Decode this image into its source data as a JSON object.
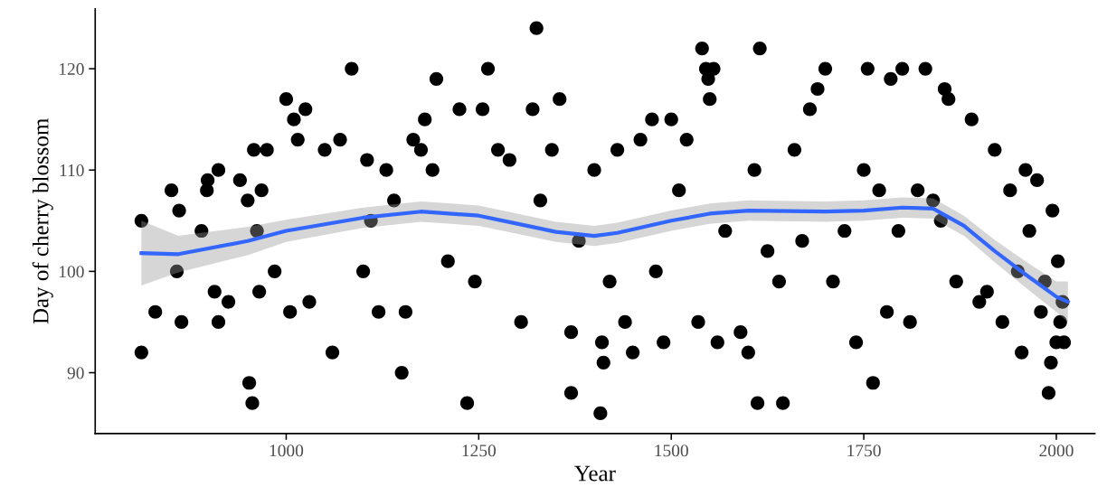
{
  "chart_data": {
    "type": "scatter",
    "xlabel": "Year",
    "ylabel": "Day of cherry blossom",
    "xlim": [
      752,
      2050
    ],
    "ylim": [
      84,
      125.9
    ],
    "xticks": [
      1000,
      1250,
      1500,
      1750,
      2000
    ],
    "yticks": [
      90,
      100,
      110,
      120
    ],
    "grid": false,
    "marker": "circle",
    "series": [
      {
        "color": "#000000",
        "x": [
          812,
          812,
          830,
          851,
          858,
          861,
          864,
          890,
          897,
          898,
          907,
          912,
          912,
          925,
          940,
          950,
          952,
          956,
          958,
          962,
          965,
          968,
          975,
          985,
          1000,
          1005,
          1010,
          1015,
          1025,
          1030,
          1050,
          1060,
          1070,
          1085,
          1100,
          1105,
          1110,
          1120,
          1130,
          1140,
          1150,
          1155,
          1165,
          1175,
          1180,
          1190,
          1195,
          1210,
          1225,
          1235,
          1245,
          1255,
          1262,
          1275,
          1290,
          1305,
          1320,
          1325,
          1330,
          1345,
          1355,
          1370,
          1370,
          1380,
          1400,
          1408,
          1410,
          1412,
          1420,
          1430,
          1440,
          1450,
          1460,
          1475,
          1480,
          1490,
          1500,
          1510,
          1520,
          1535,
          1540,
          1545,
          1548,
          1550,
          1555,
          1560,
          1570,
          1590,
          1600,
          1608,
          1612,
          1615,
          1625,
          1640,
          1645,
          1660,
          1670,
          1680,
          1690,
          1700,
          1710,
          1725,
          1740,
          1750,
          1755,
          1762,
          1770,
          1780,
          1785,
          1795,
          1800,
          1810,
          1820,
          1830,
          1840,
          1850,
          1855,
          1860,
          1870,
          1890,
          1900,
          1910,
          1920,
          1930,
          1940,
          1950,
          1955,
          1960,
          1965,
          1975,
          1980,
          1985,
          1990,
          1993,
          1995,
          2000,
          2002,
          2005,
          2008,
          2010
        ],
        "values": [
          92,
          105,
          96,
          108,
          100,
          106,
          95,
          104,
          108,
          109,
          98,
          110,
          95,
          97,
          109,
          107,
          89,
          87,
          112,
          104,
          98,
          108,
          112,
          100,
          117,
          96,
          115,
          113,
          116,
          97,
          112,
          92,
          113,
          120,
          100,
          111,
          105,
          96,
          110,
          107,
          90,
          96,
          113,
          112,
          115,
          110,
          119,
          101,
          116,
          87,
          99,
          116,
          120,
          112,
          111,
          95,
          116,
          124,
          107,
          112,
          117,
          88,
          94,
          103,
          110,
          86,
          93,
          91,
          99,
          112,
          95,
          92,
          113,
          115,
          100,
          93,
          115,
          108,
          113,
          95,
          122,
          120,
          119,
          117,
          120,
          93,
          104,
          94,
          92,
          110,
          87,
          122,
          102,
          99,
          87,
          112,
          103,
          116,
          118,
          120,
          99,
          104,
          93,
          110,
          120,
          89,
          108,
          96,
          119,
          104,
          120,
          95,
          108,
          120,
          107,
          105,
          118,
          117,
          99,
          115,
          97,
          98,
          112,
          95,
          108,
          100,
          92,
          110,
          104,
          109,
          96,
          99,
          88,
          91,
          106,
          93,
          101,
          95,
          97,
          93
        ]
      },
      {
        "type": "line",
        "color": "#3366ff",
        "marker": "none",
        "line_style": "solid",
        "x": [
          812,
          860,
          950,
          1000,
          1100,
          1175,
          1250,
          1300,
          1350,
          1400,
          1430,
          1500,
          1550,
          1600,
          1700,
          1750,
          1800,
          1840,
          1880,
          1920,
          1960,
          2000,
          2015
        ],
        "values": [
          101.8,
          101.7,
          103,
          104,
          105.3,
          105.9,
          105.5,
          104.7,
          103.9,
          103.5,
          103.8,
          105,
          105.7,
          106,
          105.9,
          106,
          106.3,
          106.2,
          104.5,
          102,
          99.7,
          97.5,
          97
        ],
        "lower": [
          98.6,
          99.9,
          101.6,
          102.9,
          104.3,
          104.9,
          104.5,
          103.7,
          102.9,
          102.5,
          102.8,
          104,
          104.7,
          105,
          104.9,
          105,
          105.3,
          105.2,
          103.5,
          100.9,
          98.4,
          96,
          95
        ],
        "upper": [
          105,
          103.5,
          104.4,
          105.1,
          106.3,
          106.9,
          106.5,
          105.7,
          104.9,
          104.5,
          104.8,
          106,
          106.7,
          107,
          106.9,
          107,
          107.3,
          107.2,
          105.5,
          103.1,
          101,
          99,
          99
        ]
      }
    ]
  }
}
